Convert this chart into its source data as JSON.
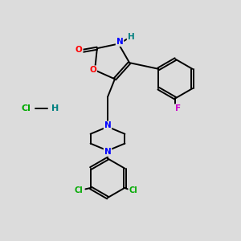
{
  "background_color": "#dcdcdc",
  "bond_color": "#000000",
  "bond_width": 1.4,
  "atom_colors": {
    "O": "#ff0000",
    "N": "#0000ff",
    "H": "#008080",
    "F": "#cc00cc",
    "Cl": "#00aa00"
  }
}
